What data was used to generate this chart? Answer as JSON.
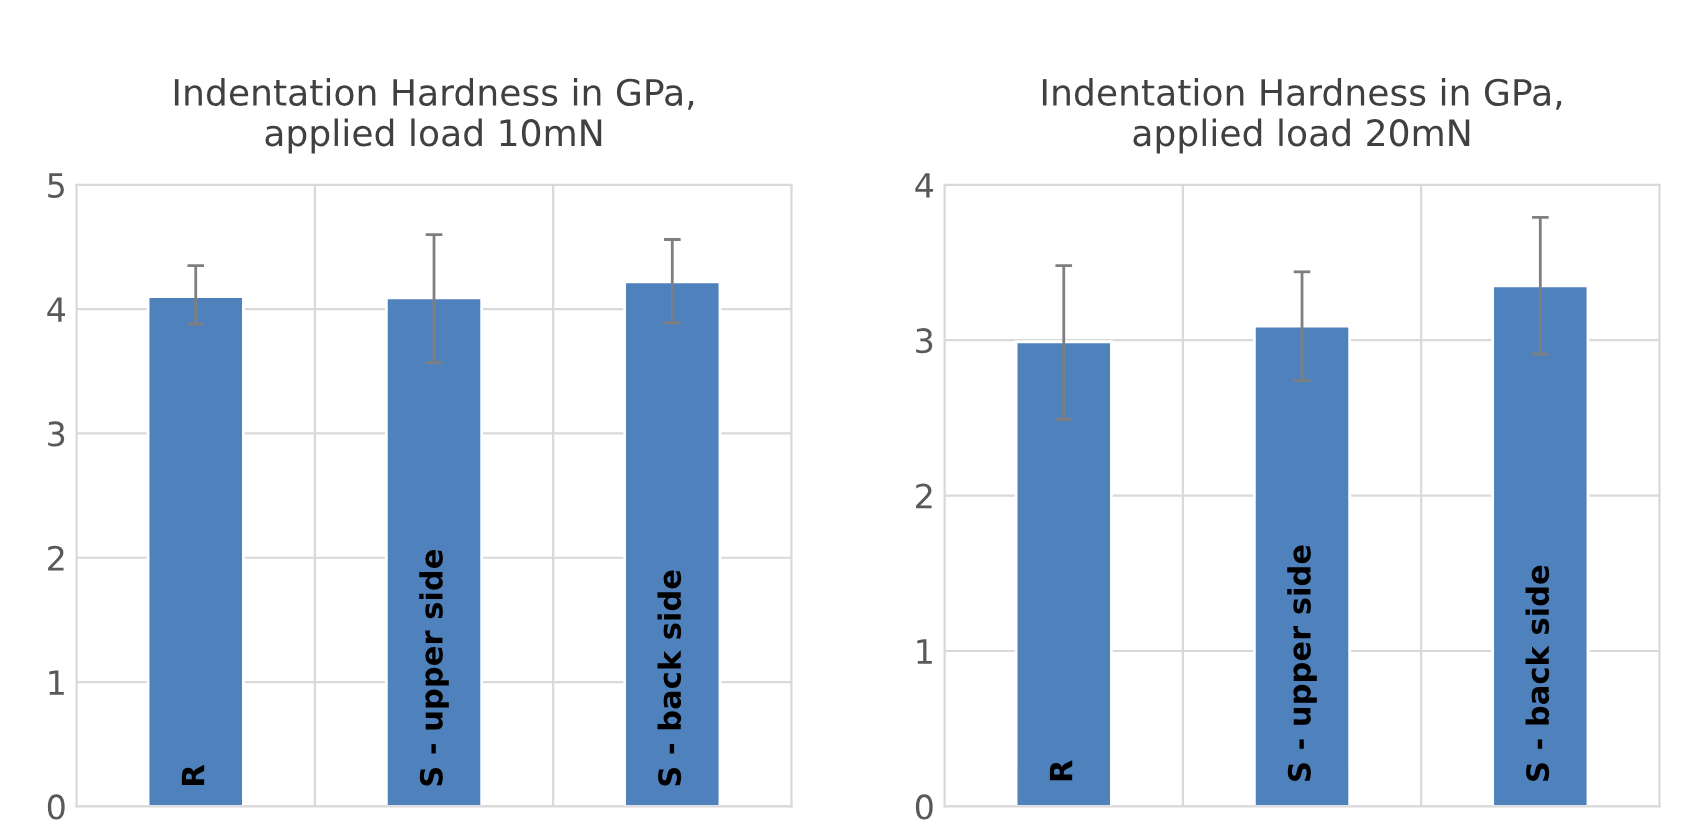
{
  "chart_data": [
    {
      "type": "bar",
      "title": "Indentation Hardness in GPa,\napplied load 10mN",
      "categories": [
        "R",
        "S - upper side",
        "S - back side"
      ],
      "values": [
        4.1,
        4.09,
        4.22
      ],
      "errors": [
        [
          3.88,
          4.35
        ],
        [
          3.57,
          4.6
        ],
        [
          3.89,
          4.56
        ]
      ],
      "color": "#4f81bd",
      "ylim": [
        0,
        5
      ],
      "yticks": [
        0,
        1,
        2,
        3,
        4,
        5
      ],
      "grid": true
    },
    {
      "type": "bar",
      "title": "Indentation Hardness in GPa,\napplied load 20mN",
      "categories": [
        "R",
        "S - upper side",
        "S - back side"
      ],
      "values": [
        2.99,
        3.09,
        3.35
      ],
      "errors": [
        [
          2.49,
          3.48
        ],
        [
          2.74,
          3.44
        ],
        [
          2.91,
          3.79
        ]
      ],
      "color": "#4f81bd",
      "ylim": [
        0,
        4
      ],
      "yticks": [
        0,
        1,
        2,
        3,
        4
      ],
      "grid": true
    }
  ]
}
